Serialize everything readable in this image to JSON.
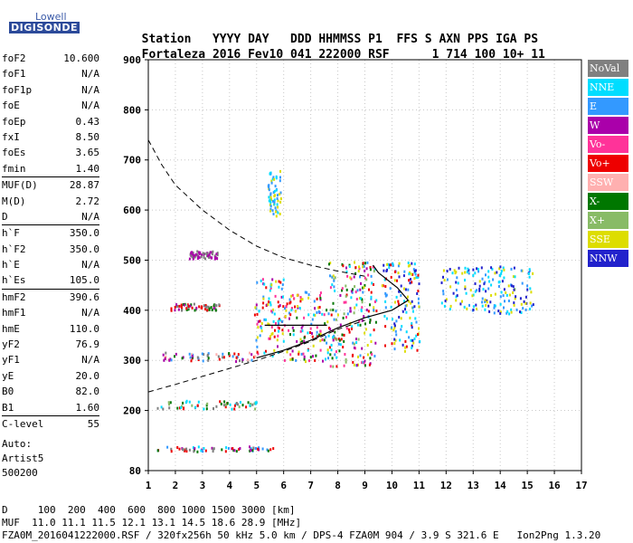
{
  "logo": {
    "top": "Lowell",
    "bottom": "DIGISONDE"
  },
  "header": {
    "cols": [
      "Station",
      "YYYY",
      "DAY",
      "DDD",
      "HHMMSS",
      "P1",
      "FFS",
      "S",
      "AXN",
      "PPS",
      "IGA",
      "PS"
    ],
    "vals": [
      "Fortaleza",
      "2016",
      "Fev10",
      "041",
      "222000",
      "RSF",
      "1",
      "714",
      "100",
      "10+",
      "11"
    ]
  },
  "params": [
    [
      {
        "name": "foF2",
        "value": "10.600"
      },
      {
        "name": "foF1",
        "value": "N/A"
      },
      {
        "name": "foF1p",
        "value": "N/A"
      },
      {
        "name": "foE",
        "value": "N/A"
      },
      {
        "name": "foEp",
        "value": "0.43"
      },
      {
        "name": "fxI",
        "value": "8.50"
      },
      {
        "name": "foEs",
        "value": "3.65"
      },
      {
        "name": "fmin",
        "value": "1.40"
      }
    ],
    [
      {
        "name": "MUF(D)",
        "value": "28.87"
      },
      {
        "name": "M(D)",
        "value": "2.72"
      },
      {
        "name": "D",
        "value": "N/A"
      }
    ],
    [
      {
        "name": "h`F",
        "value": "350.0"
      },
      {
        "name": "h`F2",
        "value": "350.0"
      },
      {
        "name": "h`E",
        "value": "N/A"
      },
      {
        "name": "h`Es",
        "value": "105.0"
      }
    ],
    [
      {
        "name": "hmF2",
        "value": "390.6"
      },
      {
        "name": "hmF1",
        "value": "N/A"
      },
      {
        "name": "hmE",
        "value": "110.0"
      },
      {
        "name": "yF2",
        "value": "76.9"
      },
      {
        "name": "yF1",
        "value": "N/A"
      },
      {
        "name": "yE",
        "value": "20.0"
      },
      {
        "name": "B0",
        "value": "82.0"
      },
      {
        "name": "B1",
        "value": "1.60"
      }
    ],
    [
      {
        "name": "C-level",
        "value": "55"
      }
    ]
  ],
  "auto": {
    "label": "Auto:",
    "name": "Artist5",
    "code": "500200"
  },
  "footer": {
    "d_line": "D     100  200  400  600  800 1000 1500 3000 [km]",
    "muf_line": "MUF  11.0 11.1 11.5 12.1 13.1 14.5 18.6 28.9 [MHz]",
    "file_line": "FZA0M_2016041222000.RSF / 320fx256h 50 kHz 5.0 km / DPS-4 FZA0M 904 / 3.9 S 321.6 E   Ion2Png 1.3.20"
  },
  "legend": [
    {
      "label": "NoVal",
      "color": "#808080"
    },
    {
      "label": "NNE",
      "color": "#00ddff"
    },
    {
      "label": "E",
      "color": "#3399ff"
    },
    {
      "label": "W",
      "color": "#aa00aa"
    },
    {
      "label": "Vo-",
      "color": "#ff3399"
    },
    {
      "label": "Vo+",
      "color": "#ee0000"
    },
    {
      "label": "SSW",
      "color": "#ffb0b0"
    },
    {
      "label": "X-",
      "color": "#007700"
    },
    {
      "label": "X+",
      "color": "#88bb66"
    },
    {
      "label": "SSE",
      "color": "#dddd00"
    },
    {
      "label": "NNW",
      "color": "#2222cc"
    }
  ],
  "chart_data": {
    "type": "scatter",
    "xlim": [
      1,
      17
    ],
    "ylim": [
      80,
      900
    ],
    "x_ticks": [
      1,
      2,
      3,
      4,
      5,
      6,
      7,
      8,
      9,
      10,
      11,
      12,
      13,
      14,
      15,
      16,
      17
    ],
    "y_ticks": [
      80,
      200,
      300,
      400,
      500,
      600,
      700,
      800,
      900
    ],
    "curves": {
      "muf_dashed": [
        [
          1,
          740
        ],
        [
          1.5,
          690
        ],
        [
          2,
          650
        ],
        [
          3,
          600
        ],
        [
          4,
          560
        ],
        [
          5,
          528
        ],
        [
          6,
          505
        ],
        [
          7,
          490
        ],
        [
          8,
          478
        ],
        [
          9,
          468
        ]
      ],
      "lower_dashed": [
        [
          1,
          237
        ],
        [
          2,
          252
        ],
        [
          3,
          268
        ],
        [
          4,
          284
        ],
        [
          5,
          300
        ],
        [
          6,
          318
        ],
        [
          7,
          338
        ],
        [
          8,
          362
        ],
        [
          9,
          380
        ]
      ],
      "profile_solid": [
        [
          5,
          305
        ],
        [
          6,
          320
        ],
        [
          7,
          340
        ],
        [
          8,
          365
        ],
        [
          9,
          385
        ],
        [
          10,
          400
        ],
        [
          10.6,
          420
        ],
        [
          10.2,
          445
        ],
        [
          9.5,
          475
        ],
        [
          9.3,
          490
        ]
      ],
      "solid_flat": [
        [
          5.3,
          370
        ],
        [
          7.6,
          370
        ]
      ]
    },
    "clusters": [
      {
        "x": [
          1.3,
          5.6
        ],
        "y": [
          120,
          130
        ],
        "colors": [
          "#3399ff",
          "#00ddff",
          "#aa00aa",
          "#007700",
          "#ee0000",
          "#808080"
        ]
      },
      {
        "x": [
          1.3,
          5.0
        ],
        "y": [
          205,
          222
        ],
        "colors": [
          "#ee0000",
          "#007700",
          "#88bb66",
          "#00ddff",
          "#808080"
        ]
      },
      {
        "x": [
          1.5,
          5.0
        ],
        "y": [
          300,
          318
        ],
        "colors": [
          "#3399ff",
          "#aa00aa",
          "#ee0000",
          "#808080",
          "#007700",
          "#ffb0b0"
        ]
      },
      {
        "x": [
          1.8,
          3.6
        ],
        "y": [
          402,
          415
        ],
        "colors": [
          "#aa00aa",
          "#ee0000",
          "#007700",
          "#808080"
        ]
      },
      {
        "x": [
          2.5,
          3.6
        ],
        "y": [
          505,
          520
        ],
        "colors": [
          "#aa00aa",
          "#808080"
        ]
      },
      {
        "x": [
          4.9,
          6.0
        ],
        "y": [
          310,
          470
        ],
        "colors": [
          "#ee0000",
          "#ff3399",
          "#3399ff",
          "#00ddff",
          "#aa00aa",
          "#dddd00"
        ]
      },
      {
        "x": [
          6.0,
          7.6
        ],
        "y": [
          300,
          440
        ],
        "colors": [
          "#ee0000",
          "#ff3399",
          "#3399ff",
          "#00ddff",
          "#aa00aa",
          "#dddd00",
          "#007700"
        ]
      },
      {
        "x": [
          7.6,
          9.4
        ],
        "y": [
          290,
          500
        ],
        "colors": [
          "#ee0000",
          "#ff3399",
          "#3399ff",
          "#00ddff",
          "#aa00aa",
          "#dddd00",
          "#007700",
          "#88bb66"
        ]
      },
      {
        "x": [
          9.6,
          11.0
        ],
        "y": [
          320,
          500
        ],
        "colors": [
          "#2222cc",
          "#3399ff",
          "#00ddff",
          "#ee0000",
          "#dddd00"
        ]
      },
      {
        "x": [
          11.8,
          15.2
        ],
        "y": [
          395,
          490
        ],
        "colors": [
          "#2222cc",
          "#3399ff",
          "#00ddff",
          "#dddd00"
        ]
      },
      {
        "x": [
          5.4,
          5.9
        ],
        "y": [
          590,
          680
        ],
        "colors": [
          "#dddd00",
          "#00ddff",
          "#3399ff"
        ]
      }
    ]
  }
}
